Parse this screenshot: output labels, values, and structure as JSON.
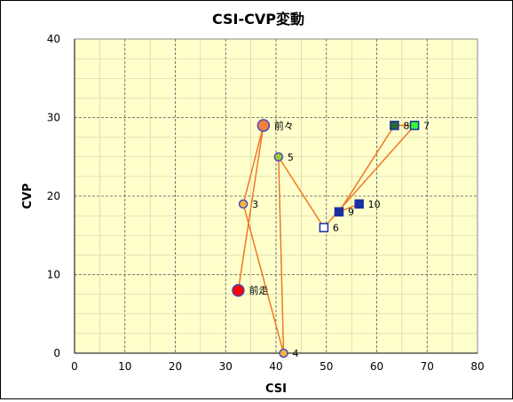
{
  "chart_data": {
    "type": "scatter",
    "title": "CSI-CVP変動",
    "xlabel": "CSI",
    "ylabel": "CVP",
    "xlim": [
      0,
      80
    ],
    "ylim": [
      0,
      40
    ],
    "x_ticks": [
      0,
      10,
      20,
      30,
      40,
      50,
      60,
      70,
      80
    ],
    "y_ticks": [
      0,
      10,
      20,
      30,
      40
    ],
    "grid": true,
    "plot_background": "#ffffcc",
    "line_color": "#f07820",
    "points": [
      {
        "label": "前走",
        "x": 32.5,
        "y": 8,
        "marker": "circle",
        "fill": "#ff0000",
        "stroke": "#4a4ab8",
        "size": "large"
      },
      {
        "label": "前々",
        "x": 37.5,
        "y": 29,
        "marker": "circle",
        "fill": "#f08040",
        "stroke": "#4a4ab8",
        "size": "large"
      },
      {
        "label": "3",
        "x": 33.5,
        "y": 19,
        "marker": "circle",
        "fill": "#f5b640",
        "stroke": "#4a4ab8",
        "size": "small"
      },
      {
        "label": "4",
        "x": 41.5,
        "y": 0,
        "marker": "circle",
        "fill": "#f5b640",
        "stroke": "#4a4ab8",
        "size": "small"
      },
      {
        "label": "5",
        "x": 40.5,
        "y": 25,
        "marker": "circle",
        "fill": "#9acd32",
        "stroke": "#4a4ab8",
        "size": "small"
      },
      {
        "label": "6",
        "x": 49.5,
        "y": 16,
        "marker": "square",
        "fill": "#ffffff",
        "stroke": "#1a2fa0",
        "size": "small"
      },
      {
        "label": "7",
        "x": 67.5,
        "y": 29,
        "marker": "square",
        "fill": "#33ff33",
        "stroke": "#1a2fa0",
        "size": "small"
      },
      {
        "label": "8",
        "x": 63.5,
        "y": 29,
        "marker": "square",
        "fill": "#2a6b2a",
        "stroke": "#1a2fa0",
        "size": "small"
      },
      {
        "label": "9",
        "x": 52.5,
        "y": 18,
        "marker": "square",
        "fill": "#1a2fa0",
        "stroke": "#1a2fa0",
        "size": "small"
      },
      {
        "label": "10",
        "x": 56.5,
        "y": 19,
        "marker": "square",
        "fill": "#1a2fa0",
        "stroke": "#1a2fa0",
        "size": "small"
      }
    ],
    "line_order": [
      "前走",
      "前々",
      "3",
      "4",
      "5",
      "6",
      "7",
      "8",
      "9",
      "10"
    ]
  }
}
